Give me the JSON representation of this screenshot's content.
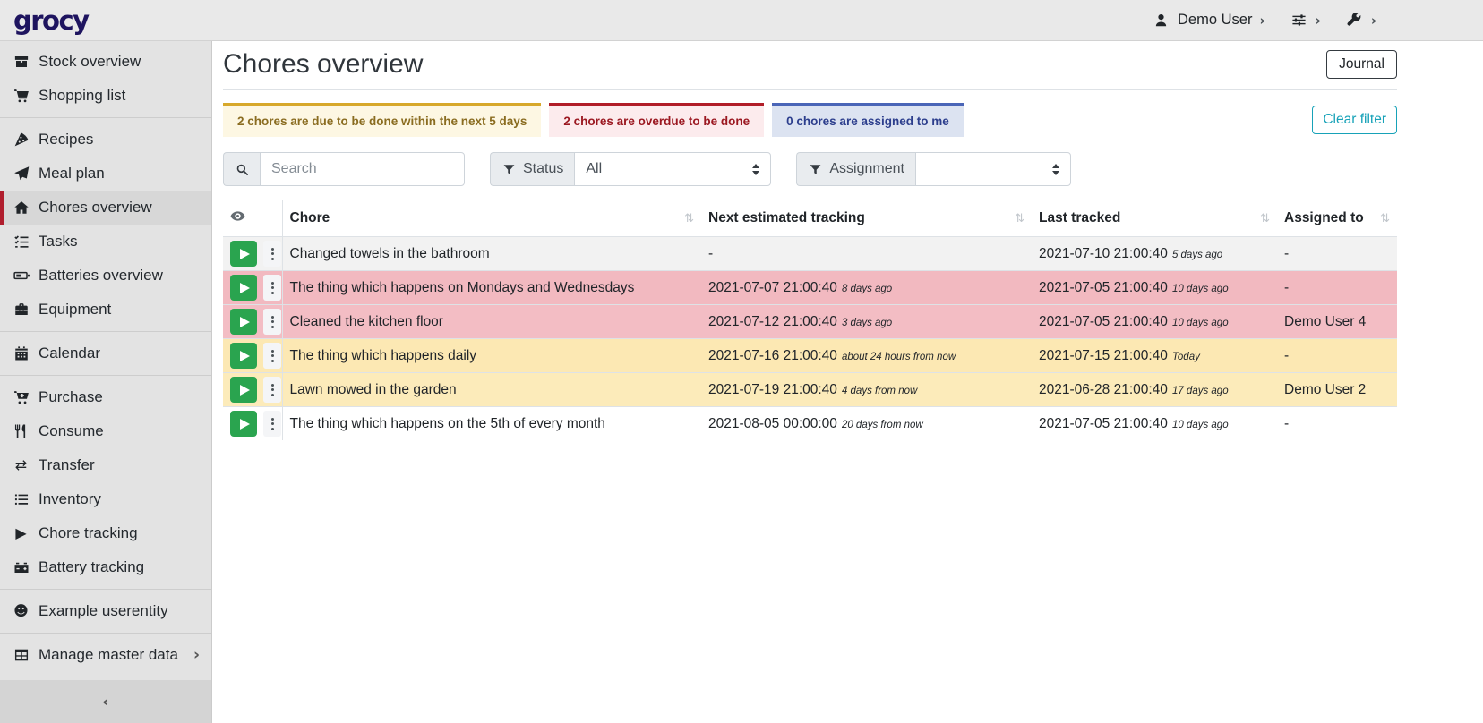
{
  "navbar": {
    "logo": "grocy",
    "user": {
      "icon": "user-icon",
      "label": "Demo User",
      "chevron": "›"
    },
    "menus": [
      {
        "icon": "sliders-icon",
        "chevron": "›"
      },
      {
        "icon": "wrench-icon",
        "chevron": "›"
      }
    ]
  },
  "sidebar": {
    "items": [
      {
        "label": "Stock overview",
        "icon": "boxes-icon"
      },
      {
        "label": "Shopping list",
        "icon": "shopping-cart-icon"
      },
      {
        "divider": true
      },
      {
        "label": "Recipes",
        "icon": "pizza-slice-icon"
      },
      {
        "label": "Meal plan",
        "icon": "paper-plane-icon"
      },
      {
        "label": "Chores overview",
        "icon": "home-icon",
        "active": true
      },
      {
        "label": "Tasks",
        "icon": "tasks-icon"
      },
      {
        "label": "Batteries overview",
        "icon": "battery-icon"
      },
      {
        "label": "Equipment",
        "icon": "toolbox-icon"
      },
      {
        "divider": true
      },
      {
        "label": "Calendar",
        "icon": "calendar-icon"
      },
      {
        "divider": true
      },
      {
        "label": "Purchase",
        "icon": "cart-plus-icon"
      },
      {
        "label": "Consume",
        "icon": "utensils-icon"
      },
      {
        "label": "Transfer",
        "icon": "exchange-icon"
      },
      {
        "label": "Inventory",
        "icon": "list-icon"
      },
      {
        "label": "Chore tracking",
        "icon": "play-icon"
      },
      {
        "label": "Battery tracking",
        "icon": "car-battery-icon"
      },
      {
        "divider": true
      },
      {
        "label": "Example userentity",
        "icon": "smiley-icon"
      },
      {
        "divider": true
      },
      {
        "label": "Manage master data",
        "icon": "table-icon",
        "chevron": "›"
      }
    ],
    "collapse_chevron": "‹"
  },
  "page": {
    "title": "Chores overview",
    "journal_button": "Journal",
    "clear_filter_button": "Clear filter"
  },
  "status_cards": [
    {
      "text": "2 chores are due to be done within the next 5 days",
      "border": "#d7a82b",
      "bg": "#fdf7e3",
      "color": "#8a6c20"
    },
    {
      "text": "2 chores are overdue to be done",
      "border": "#b11d28",
      "bg": "#fcebed",
      "color": "#9b1821"
    },
    {
      "text": "0 chores are assigned to me",
      "border": "#4a65b7",
      "bg": "#dce3f1",
      "color": "#2c3e8d"
    }
  ],
  "filters": {
    "search_placeholder": "Search",
    "status_label": "Status",
    "status_value": "All",
    "assignment_label": "Assignment",
    "assignment_value": ""
  },
  "table": {
    "sort_icon": "⇅",
    "headers": [
      {
        "label": "",
        "icon": "eye-icon"
      },
      {
        "label": "Chore",
        "sortable": true
      },
      {
        "label": "Next estimated tracking",
        "sortable": true
      },
      {
        "label": "Last tracked",
        "sortable": true
      },
      {
        "label": "Assigned to",
        "sortable": true
      }
    ],
    "rows": [
      {
        "bg": "#f2f2f2",
        "chore": "Changed towels in the bathroom",
        "next": "-",
        "next_rel": "",
        "last": "2021-07-10 21:00:40",
        "last_rel": "5 days ago",
        "assigned": "-"
      },
      {
        "bg": "#f2b9c0",
        "chore": "The thing which happens on Mondays and Wednesdays",
        "next": "2021-07-07 21:00:40",
        "next_rel": "8 days ago",
        "last": "2021-07-05 21:00:40",
        "last_rel": "10 days ago",
        "assigned": "-"
      },
      {
        "bg": "#f3bdc4",
        "chore": "Cleaned the kitchen floor",
        "next": "2021-07-12 21:00:40",
        "next_rel": "3 days ago",
        "last": "2021-07-05 21:00:40",
        "last_rel": "10 days ago",
        "assigned": "Demo User 4"
      },
      {
        "bg": "#fce8b3",
        "chore": "The thing which happens daily",
        "next": "2021-07-16 21:00:40",
        "next_rel": "about 24 hours from now",
        "last": "2021-07-15 21:00:40",
        "last_rel": "Today",
        "assigned": "-"
      },
      {
        "bg": "#fcebba",
        "chore": "Lawn mowed in the garden",
        "next": "2021-07-19 21:00:40",
        "next_rel": "4 days from now",
        "last": "2021-06-28 21:00:40",
        "last_rel": "17 days ago",
        "assigned": "Demo User 2"
      },
      {
        "bg": "#ffffff",
        "chore": "The thing which happens on the 5th of every month",
        "next": "2021-08-05 00:00:00",
        "next_rel": "20 days from now",
        "last": "2021-07-05 21:00:40",
        "last_rel": "10 days ago",
        "assigned": "-"
      }
    ]
  }
}
